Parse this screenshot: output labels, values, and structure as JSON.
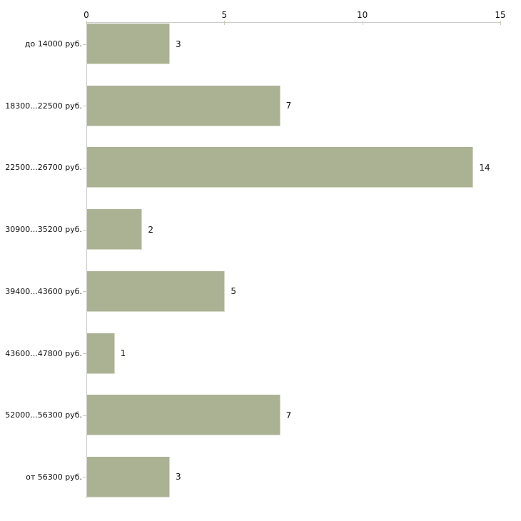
{
  "chart_data": {
    "type": "bar",
    "orientation": "horizontal",
    "categories": [
      "до 14000 руб.",
      "18300...22500 руб.",
      "22500...26700 руб.",
      "30900...35200 руб.",
      "39400...43600 руб.",
      "43600...47800 руб.",
      "52000...56300 руб.",
      "от 56300 руб."
    ],
    "values": [
      3,
      7,
      14,
      2,
      5,
      1,
      7,
      3
    ],
    "x_ticks": [
      0,
      5,
      10,
      15
    ],
    "xlim": [
      0,
      15
    ],
    "grid": "off",
    "legend": "none",
    "bar_color": "#abb294",
    "bar_edge_color": "#d8dbc9",
    "axis_line_color": "#cccccc",
    "tick_mark_color": "#c9cdb2",
    "text_color": "#111111"
  }
}
